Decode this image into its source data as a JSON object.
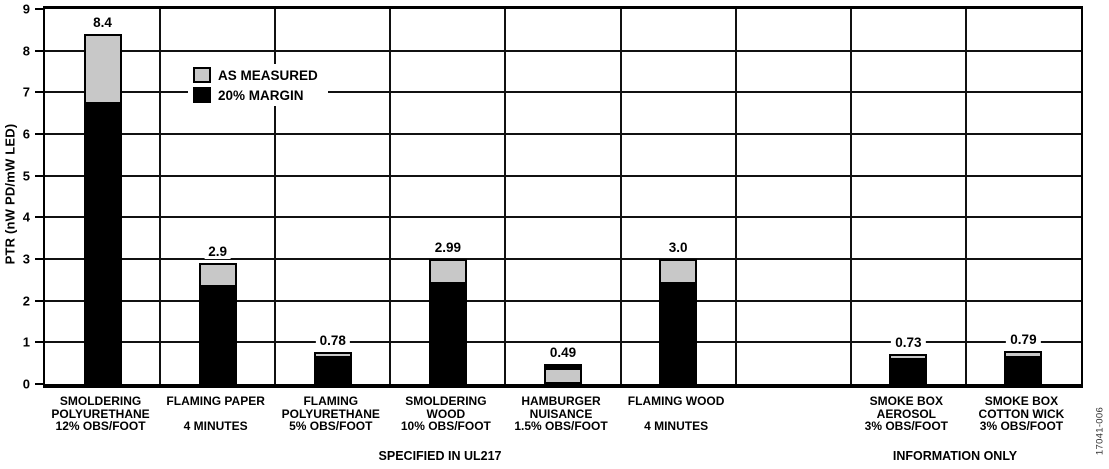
{
  "figure_number": "17041-006",
  "colors": {
    "as_measured": "#c8c8c8",
    "margin": "#000000",
    "grid": "#111111",
    "background": "#ffffff"
  },
  "y_axis": {
    "title": "PTR (nW PD/mW LED)"
  },
  "legend": {
    "items": [
      {
        "label": "AS MEASURED",
        "color": "#c8c8c8"
      },
      {
        "label": "20% MARGIN",
        "color": "#000000"
      }
    ]
  },
  "footer": {
    "left": "SPECIFIED IN UL217",
    "right": "INFORMATION ONLY"
  },
  "chart_data": {
    "type": "bar",
    "stacked": true,
    "title": "",
    "xlabel": "",
    "ylabel": "PTR (nW PD/mW LED)",
    "ylim": [
      0,
      9
    ],
    "yticks": [
      0,
      1,
      2,
      3,
      4,
      5,
      6,
      7,
      8,
      9
    ],
    "grid": true,
    "legend_position": "upper-left-inside",
    "categories": [
      "SMOLDERING POLYURETHANE 12% OBS/FOOT",
      "FLAMING PAPER 4 MINUTES",
      "FLAMING POLYURETHANE 5% OBS/FOOT",
      "SMOLDERING WOOD 10% OBS/FOOT",
      "HAMBURGER NUISANCE 1.5% OBS/FOOT",
      "FLAMING WOOD 4 MINUTES",
      "",
      "SMOKE BOX AEROSOL 3% OBS/FOOT",
      "SMOKE BOX COTTON WICK 3% OBS/FOOT"
    ],
    "totals": [
      8.4,
      2.9,
      0.78,
      2.99,
      0.49,
      3.0,
      null,
      0.73,
      0.79
    ],
    "series": [
      {
        "name": "20% MARGIN",
        "color": "#000000",
        "values": [
          6.72,
          2.32,
          0.624,
          2.392,
          0.098,
          2.4,
          null,
          0.584,
          0.632
        ]
      },
      {
        "name": "AS MEASURED",
        "color": "#c8c8c8",
        "values": [
          1.68,
          0.58,
          0.156,
          0.598,
          0.392,
          0.6,
          null,
          0.146,
          0.158
        ]
      }
    ],
    "columns": [
      {
        "label_lines": [
          "SMOLDERING",
          "POLYURETHANE",
          "12% OBS/FOOT"
        ],
        "total": 8.4,
        "value_label": "8.4",
        "boundary": 6.72,
        "measured_on_top": true
      },
      {
        "label_lines": [
          "FLAMING PAPER",
          "",
          "4 MINUTES"
        ],
        "total": 2.9,
        "value_label": "2.9",
        "boundary": 2.32,
        "measured_on_top": true
      },
      {
        "label_lines": [
          "FLAMING",
          "POLYURETHANE",
          "5% OBS/FOOT"
        ],
        "total": 0.78,
        "value_label": "0.78",
        "boundary": 0.624,
        "measured_on_top": true
      },
      {
        "label_lines": [
          "SMOLDERING",
          "WOOD",
          "10% OBS/FOOT"
        ],
        "total": 2.99,
        "value_label": "2.99",
        "boundary": 2.392,
        "measured_on_top": true
      },
      {
        "label_lines": [
          "HAMBURGER",
          "NUISANCE",
          "1.5% OBS/FOOT"
        ],
        "total": 0.49,
        "value_label": "0.49",
        "boundary": 0.392,
        "measured_on_top": false
      },
      {
        "label_lines": [
          "FLAMING WOOD",
          "",
          "4 MINUTES"
        ],
        "total": 3.0,
        "value_label": "3.0",
        "boundary": 2.4,
        "measured_on_top": true
      },
      {
        "label_lines": [],
        "total": null,
        "value_label": "",
        "boundary": null,
        "measured_on_top": true
      },
      {
        "label_lines": [
          "SMOKE BOX",
          "AEROSOL",
          "3% OBS/FOOT"
        ],
        "total": 0.73,
        "value_label": "0.73",
        "boundary": 0.584,
        "measured_on_top": true
      },
      {
        "label_lines": [
          "SMOKE BOX",
          "COTTON WICK",
          "3% OBS/FOOT"
        ],
        "total": 0.79,
        "value_label": "0.79",
        "boundary": 0.632,
        "measured_on_top": true
      }
    ]
  }
}
